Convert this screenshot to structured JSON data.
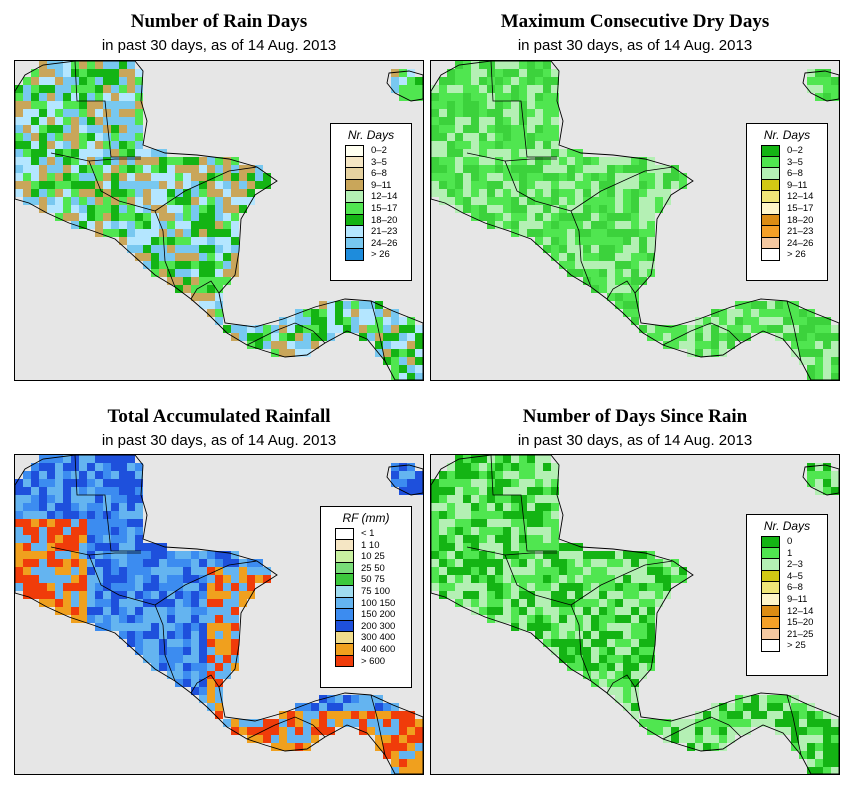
{
  "panels": [
    {
      "id": "rain-days",
      "title": "Number of Rain Days",
      "subtitle": "in past 30 days, as of  14 Aug. 2013",
      "legend_title": "Nr. Days",
      "legend": [
        {
          "label": "0–2",
          "color": "#fffff0"
        },
        {
          "label": "3–5",
          "color": "#f5e6c4"
        },
        {
          "label": "6–8",
          "color": "#e6d2a0"
        },
        {
          "label": "9–11",
          "color": "#c9a65a"
        },
        {
          "label": "12–14",
          "color": "#b4f0b4"
        },
        {
          "label": "15–17",
          "color": "#50e650"
        },
        {
          "label": "18–20",
          "color": "#14b414"
        },
        {
          "label": "21–23",
          "color": "#b4e6ff"
        },
        {
          "label": "24–26",
          "color": "#78c8f0"
        },
        {
          "label": "> 26",
          "color": "#1e8cdc"
        }
      ],
      "dominant_colors": [
        "#50e650",
        "#14b414",
        "#b4e6ff",
        "#c9a65a",
        "#78c8f0"
      ]
    },
    {
      "id": "max-dry-days",
      "title": "Maximum Consecutive Dry Days",
      "subtitle": "in past 30 days, as of  14 Aug. 2013",
      "legend_title": "Nr. Days",
      "legend": [
        {
          "label": "0–2",
          "color": "#14b414"
        },
        {
          "label": "3–5",
          "color": "#50e650"
        },
        {
          "label": "6–8",
          "color": "#b4f0b4"
        },
        {
          "label": "9–11",
          "color": "#d2c814"
        },
        {
          "label": "12–14",
          "color": "#f0e678"
        },
        {
          "label": "15–17",
          "color": "#fff5c8"
        },
        {
          "label": "18–20",
          "color": "#dc8c14"
        },
        {
          "label": "21–23",
          "color": "#f5a028"
        },
        {
          "label": "24–26",
          "color": "#f5c8a0"
        },
        {
          "label": "> 26",
          "color": "#ffffff"
        }
      ],
      "dominant_colors": [
        "#50e650",
        "#3cd23c",
        "#b4f0b4"
      ]
    },
    {
      "id": "total-rainfall",
      "title": "Total Accumulated Rainfall",
      "subtitle": "in past 30 days, as of  14 Aug. 2013",
      "legend_title": "RF (mm)",
      "legend": [
        {
          "label": "< 1",
          "color": "#ffffff"
        },
        {
          "label": "1   10",
          "color": "#f5e6c4"
        },
        {
          "label": "10   25",
          "color": "#c8f0a0"
        },
        {
          "label": "25   50",
          "color": "#78dc78"
        },
        {
          "label": "50   75",
          "color": "#3cc83c"
        },
        {
          "label": "75   100",
          "color": "#a0dcf0"
        },
        {
          "label": "100   150",
          "color": "#64b4f0"
        },
        {
          "label": "150   200",
          "color": "#3c8cf0"
        },
        {
          "label": "200   300",
          "color": "#1e50dc"
        },
        {
          "label": "300   400",
          "color": "#f0dc8c"
        },
        {
          "label": "400   600",
          "color": "#f0a01e"
        },
        {
          "label": "> 600",
          "color": "#f03c0a"
        }
      ],
      "dominant_colors": [
        "#1e50dc",
        "#3c8cf0",
        "#64b4f0",
        "#f0a01e",
        "#3cc83c"
      ]
    },
    {
      "id": "days-since-rain",
      "title": "Number of Days Since Rain",
      "subtitle": "in past 30 days, as of  14 Aug. 2013",
      "legend_title": "Nr. Days",
      "legend": [
        {
          "label": "0",
          "color": "#14b414"
        },
        {
          "label": "1",
          "color": "#50e650"
        },
        {
          "label": "2–3",
          "color": "#b4f0b4"
        },
        {
          "label": "4–5",
          "color": "#d2c814"
        },
        {
          "label": "6–8",
          "color": "#f0e678"
        },
        {
          "label": "9–11",
          "color": "#fff5c8"
        },
        {
          "label": "12–14",
          "color": "#dc8c14"
        },
        {
          "label": "15–20",
          "color": "#f5a028"
        },
        {
          "label": "21–25",
          "color": "#f5c8a0"
        },
        {
          "label": "> 25",
          "color": "#ffffff"
        }
      ],
      "dominant_colors": [
        "#14b414",
        "#50e650",
        "#b4f0b4"
      ]
    }
  ]
}
